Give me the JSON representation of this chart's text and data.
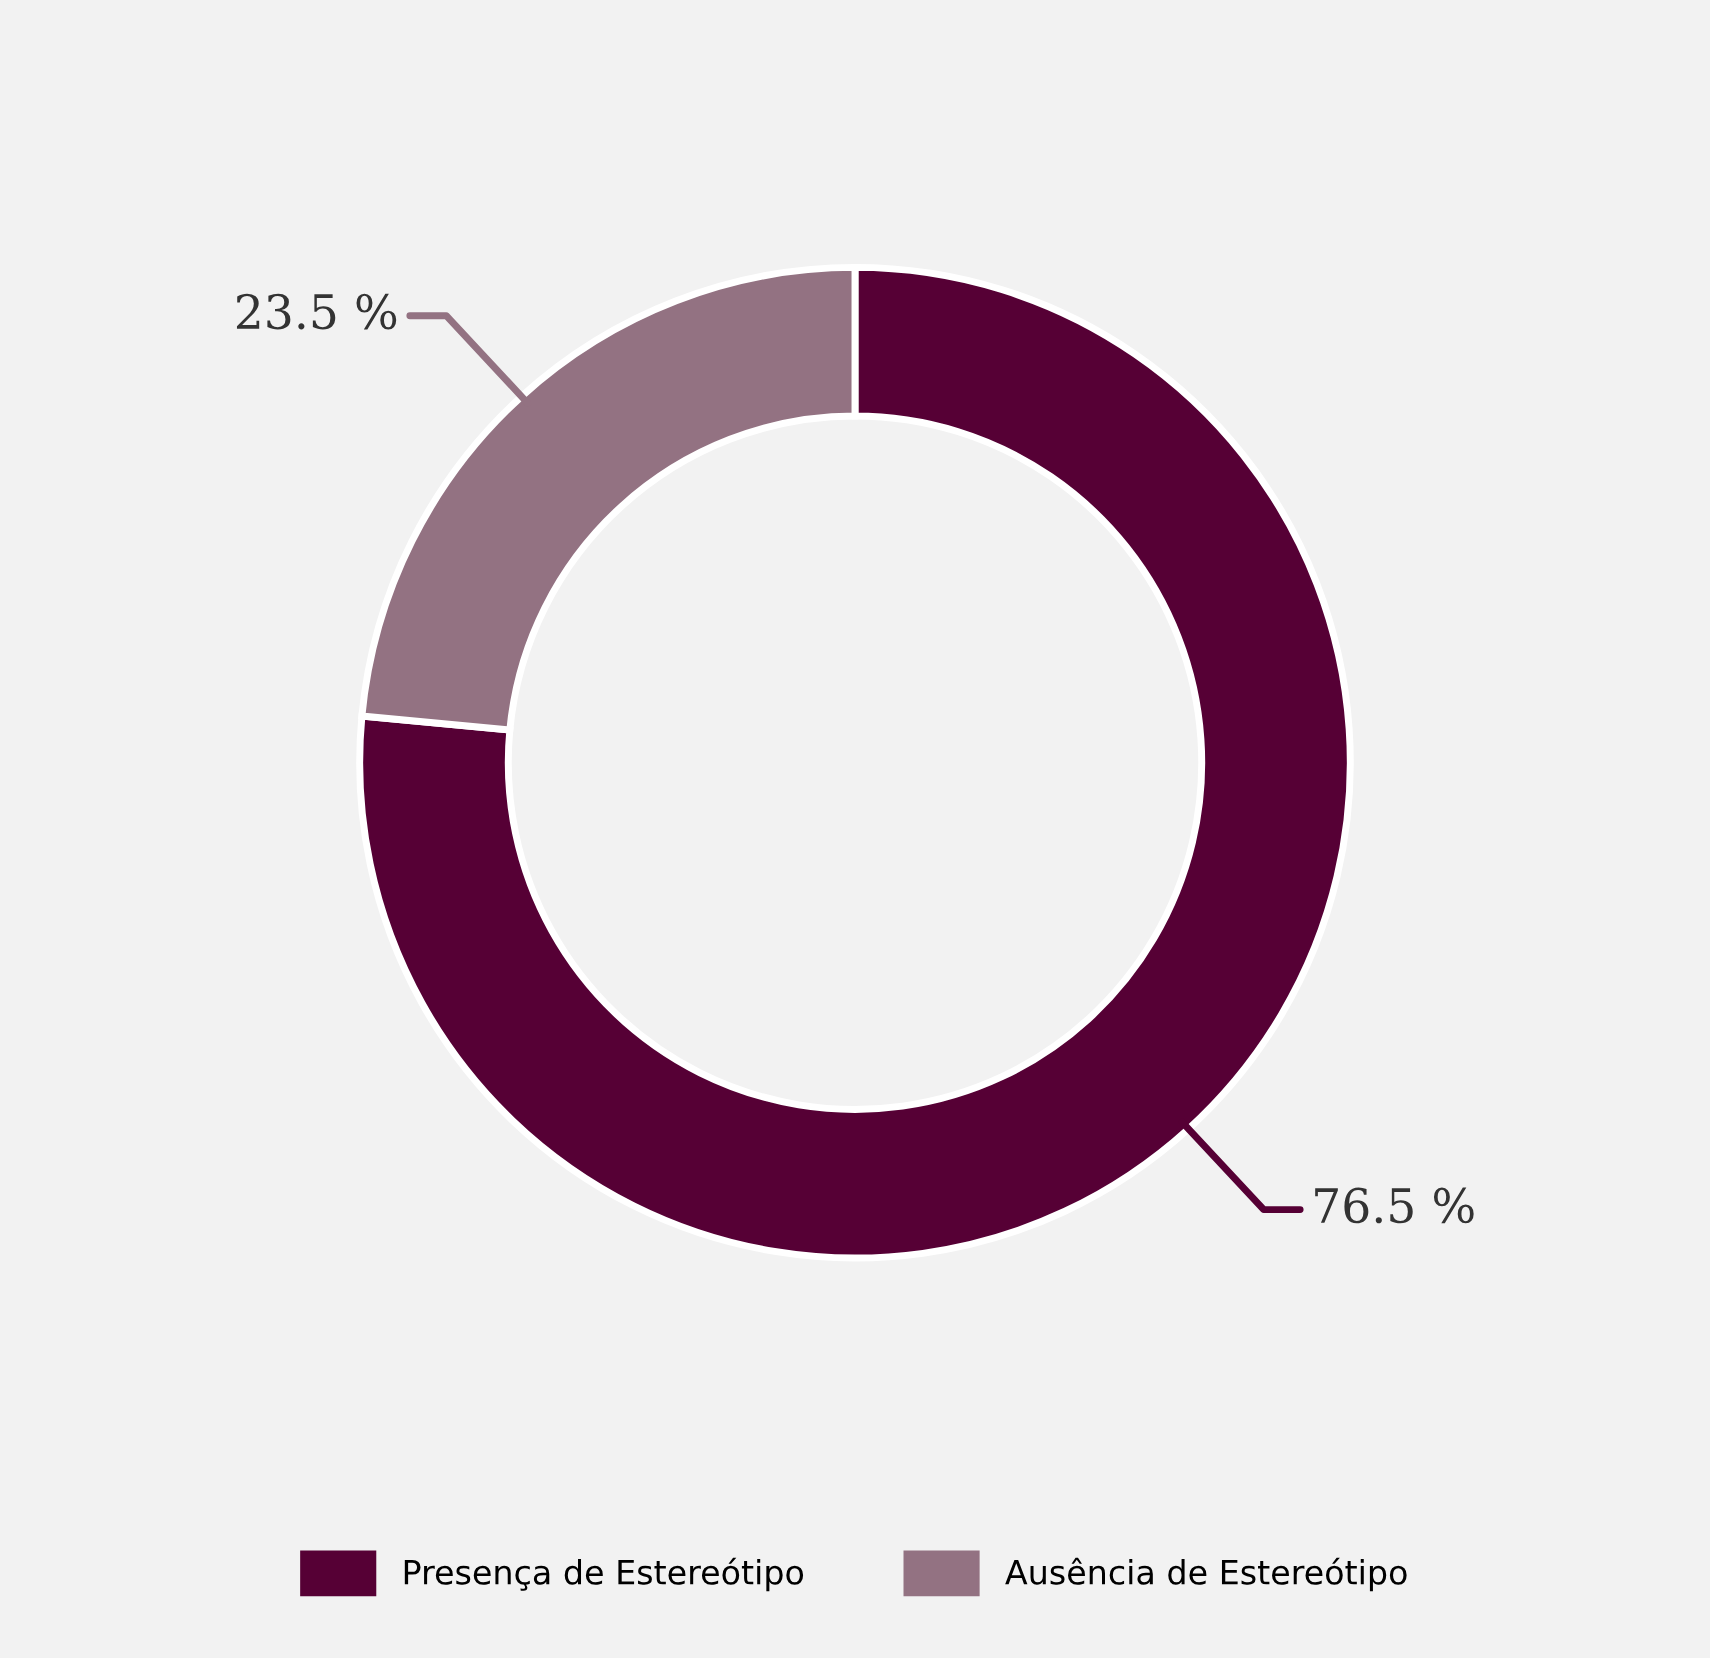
{
  "chart_data": {
    "type": "donut",
    "categories": [
      "Presença de Estereótipo",
      "Ausência de Estereótipo"
    ],
    "values": [
      76.5,
      23.5
    ],
    "colors": [
      "#560035",
      "#937282"
    ],
    "value_labels": [
      "76.5 %",
      "23.5 %"
    ],
    "legend": "bottom"
  }
}
